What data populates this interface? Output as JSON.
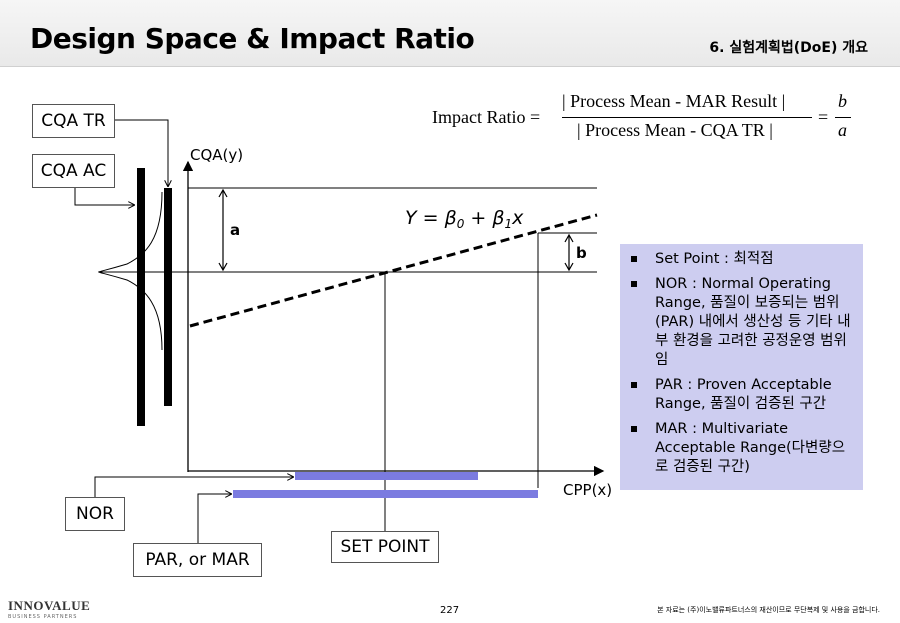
{
  "header": {
    "title": "Design Space & Impact Ratio",
    "section": "6. 실험계획법(DoE) 개요"
  },
  "formula": {
    "lhs": "Impact Ratio =",
    "numerator": "| Process Mean - MAR Result |",
    "denominator": "| Process Mean - CQA TR |",
    "equals": "=",
    "frac_num": "b",
    "frac_den": "a"
  },
  "diagram": {
    "y_axis_label": "CQA(y)",
    "x_axis_label": "CPP(x)",
    "a_label": "a",
    "b_label": "b",
    "equation": {
      "lhs": "Y = ",
      "b0": "β",
      "b0_sub": "0",
      "plus": " + ",
      "b1": "β",
      "b1_sub": "1",
      "x": "x"
    },
    "callouts": {
      "cqa_tr": "CQA TR",
      "cqa_ac": "CQA AC",
      "nor": "NOR",
      "par_mar": "PAR, or MAR",
      "set_point": "SET POINT"
    },
    "colors": {
      "range_bar": "#7b7be0",
      "legend_bg": "#cdcdf0"
    }
  },
  "legend": {
    "items": [
      "Set Point : 최적점",
      "NOR : Normal Operating Range, 품질이 보증되는 범위(PAR) 내에서 생산성 등 기타 내부 환경을 고려한 공정운영 범위임",
      "PAR : Proven Acceptable Range, 품질이 검증된 구간",
      "MAR : Multivariate Acceptable Range(다변량으로 검증된 구간)"
    ]
  },
  "footer": {
    "logo": "INNOVALUE",
    "logo_sub": "BUSINESS PARTNERS",
    "page": "227",
    "copyright": "본 자료는 (주)이노밸류파트너스의 재산이므로 무단복제 및 사용을 금합니다."
  }
}
